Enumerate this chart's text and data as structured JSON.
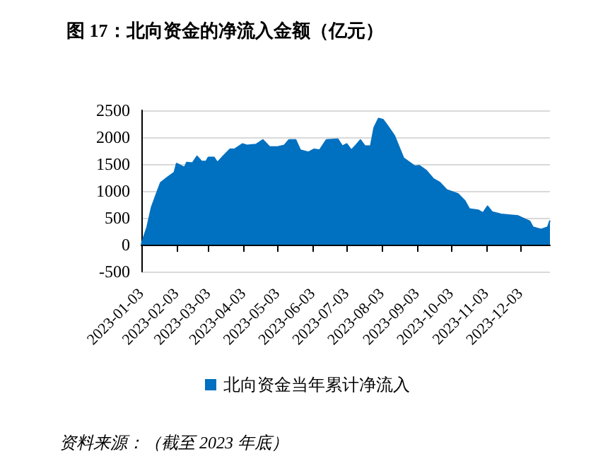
{
  "chart_data": {
    "type": "area",
    "title": "图 17：北向资金的净流入金额（亿元）",
    "annotations": [
      "资料来源：（截至 2023 年底）"
    ],
    "x": [
      "2023-01-03",
      "2023-01-05",
      "2023-01-08",
      "2023-01-12",
      "2023-01-16",
      "2023-01-20",
      "2023-01-27",
      "2023-02-01",
      "2023-02-03",
      "2023-02-07",
      "2023-02-10",
      "2023-02-12",
      "2023-02-17",
      "2023-02-21",
      "2023-02-25",
      "2023-03-01",
      "2023-03-03",
      "2023-03-08",
      "2023-03-11",
      "2023-03-16",
      "2023-03-22",
      "2023-03-26",
      "2023-04-02",
      "2023-04-06",
      "2023-04-14",
      "2023-04-20",
      "2023-04-26",
      "2023-05-03",
      "2023-05-09",
      "2023-05-13",
      "2023-05-19",
      "2023-05-23",
      "2023-05-30",
      "2023-06-04",
      "2023-06-09",
      "2023-06-15",
      "2023-06-25",
      "2023-06-29",
      "2023-07-03",
      "2023-07-07",
      "2023-07-11",
      "2023-07-15",
      "2023-07-19",
      "2023-07-24",
      "2023-07-27",
      "2023-07-31",
      "2023-08-04",
      "2023-08-08",
      "2023-08-14",
      "2023-08-22",
      "2023-09-01",
      "2023-09-05",
      "2023-09-11",
      "2023-09-17",
      "2023-09-23",
      "2023-09-29",
      "2023-10-09",
      "2023-10-15",
      "2023-10-19",
      "2023-10-27",
      "2023-10-31",
      "2023-11-04",
      "2023-11-08",
      "2023-11-16",
      "2023-11-24",
      "2023-12-01",
      "2023-12-07",
      "2023-12-11",
      "2023-12-14",
      "2023-12-21",
      "2023-12-27",
      "2023-12-29"
    ],
    "series": [
      {
        "name": "北向资金当年累计净流入",
        "color": "#0070c0",
        "values": [
          0,
          136,
          325,
          700,
          930,
          1155,
          1270,
          1345,
          1510,
          1470,
          1435,
          1530,
          1520,
          1645,
          1550,
          1550,
          1625,
          1625,
          1530,
          1645,
          1775,
          1775,
          1875,
          1850,
          1865,
          1950,
          1820,
          1820,
          1850,
          1950,
          1950,
          1760,
          1720,
          1775,
          1760,
          1950,
          1965,
          1835,
          1875,
          1760,
          1850,
          1950,
          1835,
          1835,
          2175,
          2350,
          2325,
          2210,
          2025,
          1610,
          1460,
          1470,
          1380,
          1230,
          1155,
          1020,
          945,
          815,
          665,
          640,
          590,
          715,
          610,
          565,
          550,
          535,
          475,
          440,
          325,
          285,
          325,
          450
        ]
      }
    ],
    "xlim": [
      "2023-01-03",
      "2023-12-29"
    ],
    "xticks": [
      "2023-01-03",
      "2023-02-03",
      "2023-03-03",
      "2023-04-03",
      "2023-05-03",
      "2023-06-03",
      "2023-07-03",
      "2023-08-03",
      "2023-09-03",
      "2023-10-03",
      "2023-11-03",
      "2023-12-03"
    ],
    "ylim": [
      -500,
      2500
    ],
    "yticks": [
      -500,
      0,
      500,
      1000,
      1500,
      2000,
      2500
    ],
    "grid": "y",
    "legend": "bottom"
  }
}
